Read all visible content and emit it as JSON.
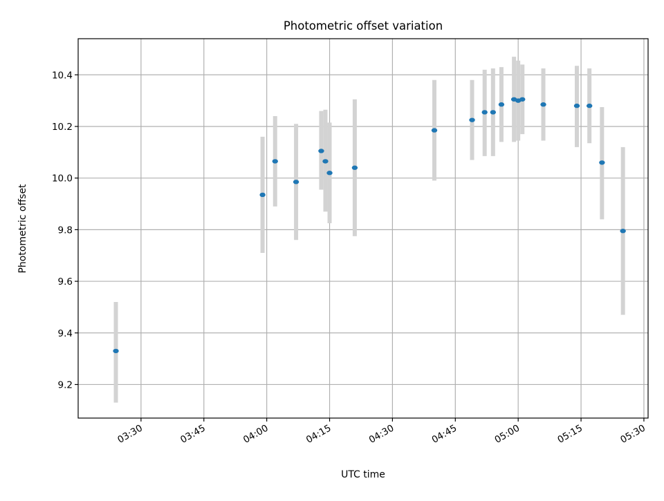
{
  "chart_data": {
    "type": "scatter",
    "title": "Photometric offset variation",
    "xlabel": "UTC time",
    "ylabel": "Photometric offset",
    "x_ticks": [
      "03:30",
      "03:45",
      "04:00",
      "04:15",
      "04:30",
      "04:45",
      "05:00",
      "05:15",
      "05:30"
    ],
    "y_ticks": [
      "9.2",
      "9.4",
      "9.6",
      "9.8",
      "10.0",
      "10.2",
      "10.4"
    ],
    "xlim": [
      "03:15",
      "05:31"
    ],
    "ylim": [
      9.07,
      10.54
    ],
    "grid": true,
    "marker_color": "#1f77b4",
    "errorbar_color": "#d3d3d3",
    "points": [
      {
        "time": "03:24",
        "y": 9.33,
        "yerr_low": 9.13,
        "yerr_high": 9.52
      },
      {
        "time": "03:59",
        "y": 9.935,
        "yerr_low": 9.71,
        "yerr_high": 10.16
      },
      {
        "time": "04:02",
        "y": 10.065,
        "yerr_low": 9.89,
        "yerr_high": 10.24
      },
      {
        "time": "04:07",
        "y": 9.985,
        "yerr_low": 9.76,
        "yerr_high": 10.21
      },
      {
        "time": "04:13",
        "y": 10.105,
        "yerr_low": 9.955,
        "yerr_high": 10.26
      },
      {
        "time": "04:14",
        "y": 10.065,
        "yerr_low": 9.87,
        "yerr_high": 10.265
      },
      {
        "time": "04:15",
        "y": 10.02,
        "yerr_low": 9.825,
        "yerr_high": 10.215
      },
      {
        "time": "04:21",
        "y": 10.04,
        "yerr_low": 9.775,
        "yerr_high": 10.305
      },
      {
        "time": "04:40",
        "y": 10.185,
        "yerr_low": 9.99,
        "yerr_high": 10.38
      },
      {
        "time": "04:49",
        "y": 10.225,
        "yerr_low": 10.07,
        "yerr_high": 10.38
      },
      {
        "time": "04:52",
        "y": 10.255,
        "yerr_low": 10.085,
        "yerr_high": 10.42
      },
      {
        "time": "04:54",
        "y": 10.255,
        "yerr_low": 10.085,
        "yerr_high": 10.425
      },
      {
        "time": "04:56",
        "y": 10.285,
        "yerr_low": 10.14,
        "yerr_high": 10.43
      },
      {
        "time": "04:59",
        "y": 10.305,
        "yerr_low": 10.14,
        "yerr_high": 10.47
      },
      {
        "time": "05:00",
        "y": 10.3,
        "yerr_low": 10.145,
        "yerr_high": 10.455
      },
      {
        "time": "05:01",
        "y": 10.305,
        "yerr_low": 10.17,
        "yerr_high": 10.44
      },
      {
        "time": "05:06",
        "y": 10.285,
        "yerr_low": 10.145,
        "yerr_high": 10.425
      },
      {
        "time": "05:14",
        "y": 10.28,
        "yerr_low": 10.12,
        "yerr_high": 10.435
      },
      {
        "time": "05:17",
        "y": 10.28,
        "yerr_low": 10.135,
        "yerr_high": 10.425
      },
      {
        "time": "05:20",
        "y": 10.06,
        "yerr_low": 9.84,
        "yerr_high": 10.275
      },
      {
        "time": "05:25",
        "y": 9.795,
        "yerr_low": 9.47,
        "yerr_high": 10.12
      }
    ]
  }
}
